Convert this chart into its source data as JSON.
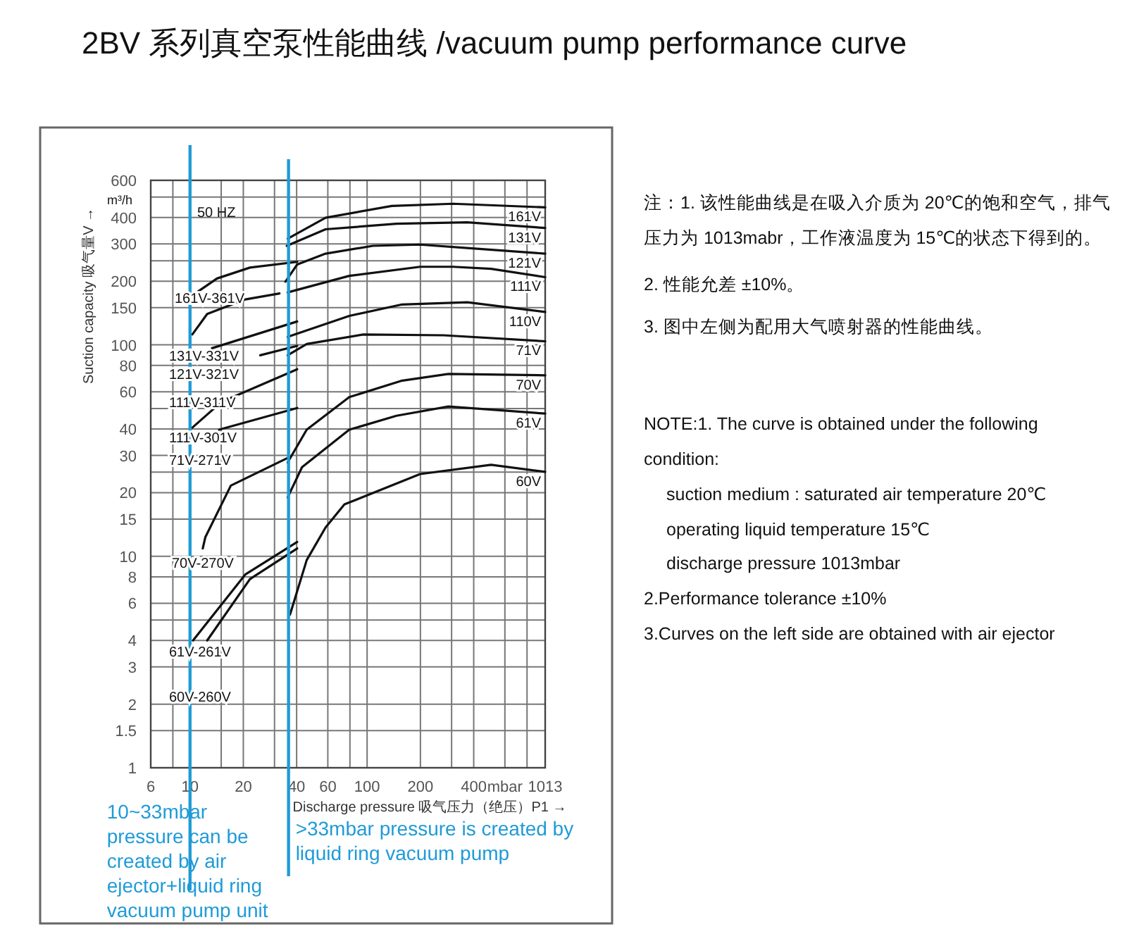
{
  "chart_data": {
    "type": "line",
    "title": "2BV 系列真空泵性能曲线 /vacuum pump performance curve",
    "xlabel": "Discharge pressure 吸气压力（绝压）P1 →",
    "ylabel": "Suction capacity 吸气量V →",
    "log": "xy",
    "grid": true,
    "xlim": [
      6,
      1013
    ],
    "ylim": [
      1,
      600
    ],
    "xticks": [
      6,
      {
        "value": 8,
        "label": null
      },
      10,
      {
        "value": 15,
        "label": null
      },
      20,
      {
        "value": 30,
        "label": null
      },
      40,
      60,
      {
        "value": 80,
        "label": null
      },
      100,
      200,
      {
        "value": 300,
        "label": null
      },
      400,
      {
        "value": 600,
        "label": "mbar"
      },
      {
        "value": 800,
        "label": null
      },
      1013
    ],
    "yticks": [
      1,
      1.5,
      2,
      3,
      4,
      {
        "value": 5,
        "label": null
      },
      6,
      8,
      10,
      15,
      20,
      {
        "value": 25,
        "label": null
      },
      30,
      40,
      {
        "value": 50,
        "label": null
      },
      60,
      80,
      100,
      150,
      200,
      {
        "value": 250,
        "label": null
      },
      300,
      400,
      {
        "value": 500,
        "label": null
      },
      600
    ],
    "series": [
      {
        "name": "161V",
        "color": "#111111",
        "x": [
          35.6,
          58.3,
          137.8,
          306,
          1013
        ],
        "values": [
          318,
          399,
          454,
          465,
          447
        ]
      },
      {
        "name": "131V",
        "color": "#111111",
        "x": [
          35.2,
          58.3,
          146.5,
          368,
          1013
        ],
        "values": [
          294,
          352,
          374,
          380,
          357
        ]
      },
      {
        "name": "121V",
        "color": "#111111",
        "x": [
          34.6,
          40.3,
          58.3,
          107.7,
          199.2,
          368,
          1013
        ],
        "values": [
          199,
          240,
          270,
          294,
          298,
          287,
          270
        ]
      },
      {
        "name": "111V",
        "color": "#111111",
        "x": [
          35.6,
          79.3,
          199.2,
          306,
          501,
          1013
        ],
        "values": [
          177,
          212,
          234,
          234,
          229,
          209
        ]
      },
      {
        "name": "110V",
        "color": "#111111",
        "x": [
          35.6,
          79.3,
          155.7,
          368,
          1013
        ],
        "values": [
          109,
          137,
          155,
          159,
          143
        ]
      },
      {
        "name": "71V",
        "color": "#111111",
        "x": [
          35.6,
          45.6,
          95.3,
          270.6,
          1013
        ],
        "values": [
          89.3,
          101,
          112,
          111,
          104
        ]
      },
      {
        "name": "70V",
        "color": "#111111",
        "x": [
          35.6,
          45.6,
          79.3,
          155.7,
          287.7,
          1013
        ],
        "values": [
          27.8,
          39.7,
          56.6,
          67.6,
          72.9,
          71.8
        ]
      },
      {
        "name": "61V",
        "color": "#111111",
        "x": [
          35.6,
          42.9,
          79.3,
          146.5,
          287.7,
          1013
        ],
        "values": [
          19.0,
          26.4,
          39.7,
          46.2,
          51.1,
          47.3
        ]
      },
      {
        "name": "60V",
        "color": "#111111",
        "x": [
          36.7,
          45.6,
          58.3,
          74.5,
          199.2,
          501,
          1013
        ],
        "values": [
          5.3,
          9.6,
          13.7,
          17.6,
          24.5,
          27.1,
          25.1
        ]
      },
      {
        "color": "#111111",
        "x": [
          10.7,
          14.2,
          21.8,
          40.3
        ],
        "values": [
          175,
          206,
          232,
          247
        ]
      },
      {
        "color": "#111111",
        "x": [
          10.3,
          12.5,
          20.5,
          32
        ],
        "values": [
          112,
          140,
          164,
          175
        ]
      },
      {
        "color": "#111111",
        "x": [
          13.3,
          40.3
        ],
        "values": [
          96.4,
          129
        ]
      },
      {
        "color": "#111111",
        "x": [
          24.9,
          40.3
        ],
        "values": [
          89.3,
          98.9
        ]
      },
      {
        "color": "#111111",
        "x": [
          10.3,
          15.1,
          40.3
        ],
        "values": [
          40.6,
          53.8,
          76.7
        ]
      },
      {
        "color": "#111111",
        "x": [
          14.6,
          40.3
        ],
        "values": [
          39.7,
          50.3
        ]
      },
      {
        "color": "#111111",
        "x": [
          11.8,
          12.2,
          17.0,
          35.6
        ],
        "values": [
          10.9,
          12.3,
          21.6,
          29.2
        ]
      },
      {
        "color": "#111111",
        "x": [
          10.4,
          20.5,
          40.3
        ],
        "values": [
          4.0,
          8.2,
          11.7
        ]
      },
      {
        "color": "#111111",
        "x": [
          12.5,
          21.8,
          40.3
        ],
        "values": [
          4.0,
          7.8,
          10.9
        ]
      }
    ],
    "ref_lines": [
      {
        "axis": "x",
        "value": 10,
        "color": "#1f9bd7",
        "label": "10~33mbar pressure can be created by air ejector+liquid ring vacuum pump unit"
      },
      {
        "axis": "x",
        "value": 36,
        "color": "#1f9bd7",
        "label": ">33mbar pressure is created by liquid ring vacuum pump"
      }
    ],
    "annotations": [
      "50 HZ",
      "m³/h",
      "注：1. 该性能曲线是在吸入介质为 20℃的饱和空气，排气压力为 1013mabr，工作液温度为 15℃的状态下得到的。",
      "2. 性能允差 ±10%。",
      "3. 图中左侧为配用大气喷射器的性能曲线。",
      "NOTE:1. The curve is obtained under the following condition:",
      "suction medium : saturated air temperature 20℃",
      "operating liquid temperature 15℃",
      "discharge pressure 1013mbar",
      "2.Performance tolerance ±10%",
      "3.Curves on the left side are obtained with air ejector",
      "161V-361V",
      "131V-331V",
      "121V-321V",
      "111V-311V",
      "111V-301V",
      "71V-271V",
      "70V-270V",
      "61V-261V",
      "60V-260V"
    ]
  }
}
